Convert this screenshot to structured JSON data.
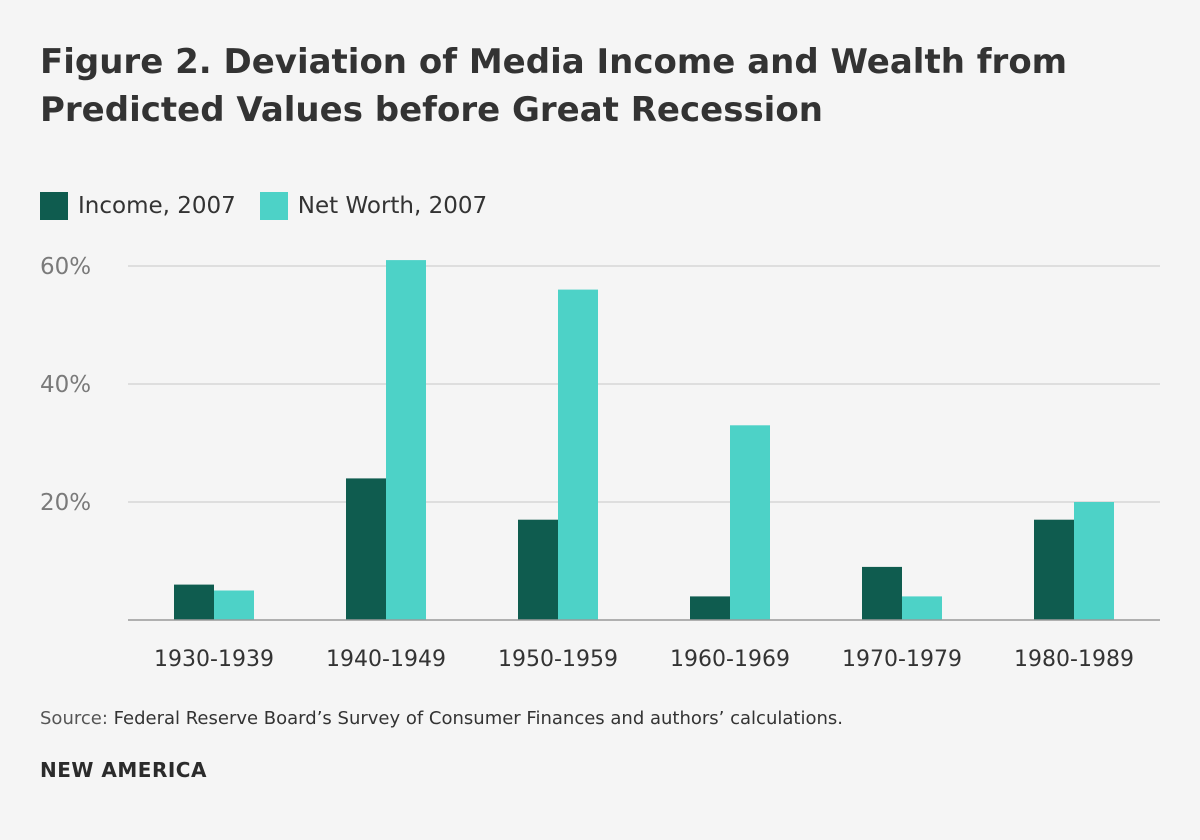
{
  "chart_data": {
    "type": "bar",
    "title_lines": [
      "Figure 2. Deviation of Media Income and Wealth from",
      "Predicted Values before Great Recession"
    ],
    "categories": [
      "1930-1939",
      "1940-1949",
      "1950-1959",
      "1960-1969",
      "1970-1979",
      "1980-1989"
    ],
    "series": [
      {
        "name": "Income, 2007",
        "color": "#0f5c4f",
        "values": [
          6,
          24,
          17,
          4,
          9,
          17
        ]
      },
      {
        "name": "Net Worth, 2007",
        "color": "#4dd2c7",
        "values": [
          5,
          61,
          56,
          33,
          4,
          20
        ]
      }
    ],
    "ylim": [
      0,
      60
    ],
    "yticks": [
      {
        "value": 20,
        "label": "20%"
      },
      {
        "value": 40,
        "label": "40%"
      },
      {
        "value": 60,
        "label": "60%"
      }
    ],
    "grid": true,
    "legend_position": "top-left",
    "xlabel": "",
    "ylabel": ""
  },
  "source": {
    "label": "Source:",
    "text": "Federal Reserve Board’s Survey of Consumer Finances and authors’ calculations."
  },
  "brand": "NEW AMERICA"
}
